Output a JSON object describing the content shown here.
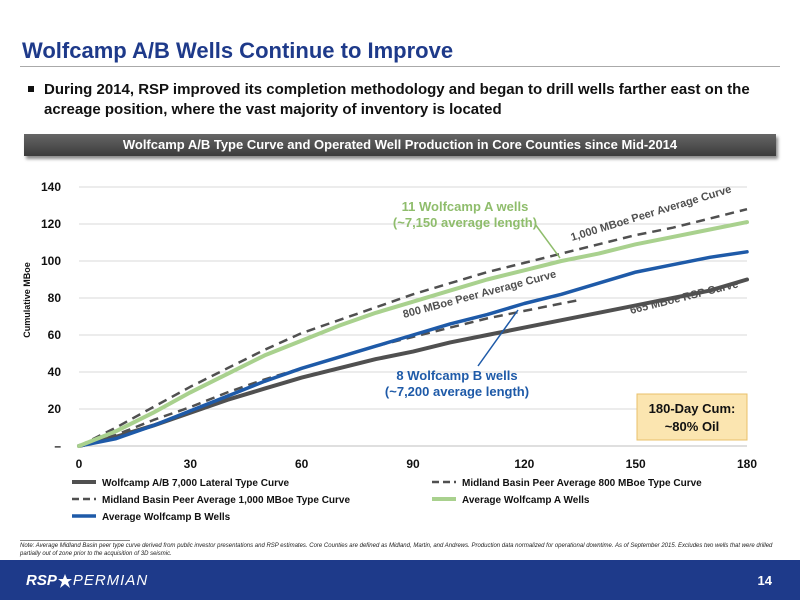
{
  "slide": {
    "title": "Wolfcamp A/B Wells Continue to Improve",
    "bullet": "During 2014, RSP improved its completion methodology and began to drill wells farther east on the acreage position, where the vast majority of inventory is located",
    "banner": "Wolfcamp A/B Type Curve and Operated Well Production in Core Counties since Mid-2014",
    "footnote": "Note: Average Midland Basin peer type curve derived from public investor presentations and RSP estimates. Core Counties are defined as Midland, Martin, and Andrews. Production data normalized for operational downtime. As of September 2015. Excludes two wells that were drilled partially out of zone prior to the acquisition of 3D seismic.",
    "page_number": "14",
    "logo": {
      "left": "RSP",
      "right": "PERMIAN"
    }
  },
  "colors": {
    "title": "#1e3a8a",
    "footer": "#1e3a8a",
    "type_curve": "#505050",
    "peer": "#505050",
    "wolfcamp_a": "#a9d18e",
    "wolfcamp_b": "#1e5aa8",
    "callout_bg": "#fbe5b0",
    "callout_border": "#e8c06a"
  },
  "chart_data": {
    "type": "line",
    "ylabel": "Cumulative MBoe",
    "xlabel": "",
    "xlim": [
      0,
      180
    ],
    "ylim": [
      0,
      140
    ],
    "x_ticks": [
      0,
      30,
      60,
      90,
      120,
      150,
      180
    ],
    "x_tick_labels": [
      "0",
      "30",
      "60",
      "90",
      "120",
      "150",
      "180"
    ],
    "y_ticks": [
      0,
      20,
      40,
      60,
      80,
      100,
      120,
      140
    ],
    "y_tick_labels": [
      "–",
      "20",
      "40",
      "60",
      "80",
      "100",
      "120",
      "140"
    ],
    "grid": "horizontal",
    "legend_position": "bottom",
    "series": [
      {
        "name": "Wolfcamp A/B 7,000 Lateral Type Curve",
        "style": "solid",
        "width": 4,
        "color_key": "type_curve",
        "points": [
          [
            0,
            0
          ],
          [
            10,
            5
          ],
          [
            20,
            11
          ],
          [
            30,
            18
          ],
          [
            40,
            25
          ],
          [
            50,
            31
          ],
          [
            60,
            37
          ],
          [
            70,
            42
          ],
          [
            80,
            47
          ],
          [
            90,
            51
          ],
          [
            100,
            56
          ],
          [
            110,
            60
          ],
          [
            120,
            64
          ],
          [
            130,
            68
          ],
          [
            140,
            72
          ],
          [
            150,
            76
          ],
          [
            160,
            80
          ],
          [
            170,
            84
          ],
          [
            180,
            90
          ]
        ]
      },
      {
        "name": "Midland Basin Peer Average 800 MBoe Type Curve",
        "style": "dashed",
        "width": 2.5,
        "color_key": "peer",
        "points": [
          [
            0,
            0
          ],
          [
            10,
            6
          ],
          [
            20,
            14
          ],
          [
            30,
            21
          ],
          [
            40,
            29
          ],
          [
            50,
            36
          ],
          [
            60,
            42
          ],
          [
            70,
            48
          ],
          [
            80,
            54
          ],
          [
            90,
            59
          ],
          [
            100,
            64
          ],
          [
            110,
            69
          ],
          [
            120,
            73
          ],
          [
            130,
            77
          ],
          [
            135,
            79
          ]
        ]
      },
      {
        "name": "Midland Basin Peer Average 1,000 MBoe Type Curve",
        "style": "dashed",
        "width": 2.5,
        "color_key": "peer",
        "points": [
          [
            0,
            0
          ],
          [
            10,
            10
          ],
          [
            20,
            21
          ],
          [
            30,
            32
          ],
          [
            40,
            42
          ],
          [
            50,
            52
          ],
          [
            60,
            61
          ],
          [
            70,
            68
          ],
          [
            80,
            75
          ],
          [
            90,
            82
          ],
          [
            100,
            88
          ],
          [
            110,
            94
          ],
          [
            120,
            99
          ],
          [
            130,
            104
          ],
          [
            140,
            109
          ],
          [
            150,
            114
          ],
          [
            160,
            118
          ],
          [
            170,
            123
          ],
          [
            180,
            128
          ]
        ]
      },
      {
        "name": "Average Wolfcamp A Wells",
        "style": "solid",
        "width": 4,
        "color_key": "wolfcamp_a",
        "points": [
          [
            0,
            0
          ],
          [
            10,
            8
          ],
          [
            20,
            18
          ],
          [
            30,
            29
          ],
          [
            40,
            39
          ],
          [
            50,
            49
          ],
          [
            60,
            57
          ],
          [
            70,
            65
          ],
          [
            80,
            72
          ],
          [
            90,
            78
          ],
          [
            100,
            84
          ],
          [
            110,
            90
          ],
          [
            120,
            95
          ],
          [
            130,
            100
          ],
          [
            140,
            104
          ],
          [
            150,
            109
          ],
          [
            160,
            113
          ],
          [
            170,
            117
          ],
          [
            180,
            121
          ]
        ]
      },
      {
        "name": "Average Wolfcamp B Wells",
        "style": "solid",
        "width": 3.5,
        "color_key": "wolfcamp_b",
        "points": [
          [
            0,
            0
          ],
          [
            10,
            4
          ],
          [
            20,
            11
          ],
          [
            30,
            19
          ],
          [
            40,
            27
          ],
          [
            50,
            35
          ],
          [
            60,
            42
          ],
          [
            70,
            48
          ],
          [
            80,
            54
          ],
          [
            90,
            60
          ],
          [
            100,
            66
          ],
          [
            110,
            71
          ],
          [
            120,
            77
          ],
          [
            130,
            82
          ],
          [
            140,
            88
          ],
          [
            150,
            94
          ],
          [
            160,
            98
          ],
          [
            170,
            102
          ],
          [
            180,
            105
          ]
        ]
      }
    ],
    "annotations": {
      "wolfcamp_a_callout": [
        "11 Wolfcamp A wells",
        "(~7,150 average length)"
      ],
      "wolfcamp_b_callout": [
        "8 Wolfcamp B wells",
        "(~7,200 average length)"
      ],
      "peer_1000_label": "1,000 MBoe Peer Average Curve",
      "peer_800_label": "800 MBoe Peer Average Curve",
      "rsp_label": "665 MBoe RSP Curve",
      "oil_box": [
        "180-Day Cum:",
        "~80% Oil"
      ]
    }
  }
}
